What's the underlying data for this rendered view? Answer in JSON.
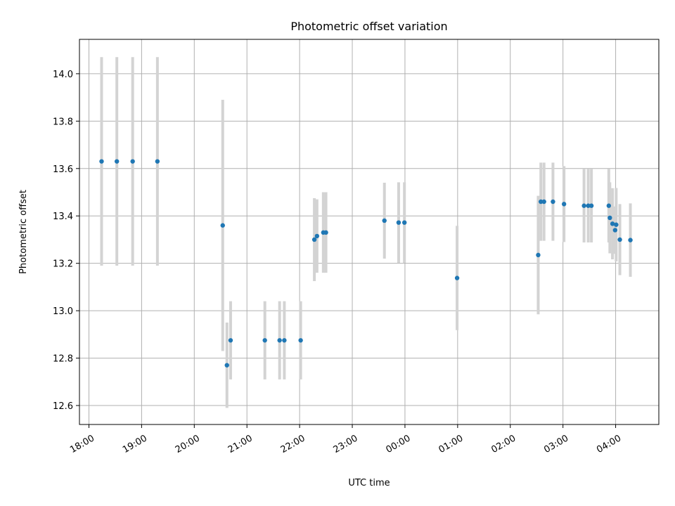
{
  "chart_data": {
    "type": "scatter",
    "title": "Photometric offset variation",
    "xlabel": "UTC time",
    "ylabel": "Photometric offset",
    "x_unit": "hours since 18:00 UTC",
    "xlim": [
      -0.18,
      10.82
    ],
    "ylim": [
      12.52,
      14.145
    ],
    "grid": true,
    "xticks": [
      {
        "value": 0,
        "label": "18:00"
      },
      {
        "value": 1,
        "label": "19:00"
      },
      {
        "value": 2,
        "label": "20:00"
      },
      {
        "value": 3,
        "label": "21:00"
      },
      {
        "value": 4,
        "label": "22:00"
      },
      {
        "value": 5,
        "label": "23:00"
      },
      {
        "value": 6,
        "label": "00:00"
      },
      {
        "value": 7,
        "label": "01:00"
      },
      {
        "value": 8,
        "label": "02:00"
      },
      {
        "value": 9,
        "label": "03:00"
      },
      {
        "value": 10,
        "label": "04:00"
      }
    ],
    "yticks": [
      {
        "value": 12.6,
        "label": "12.6"
      },
      {
        "value": 12.8,
        "label": "12.8"
      },
      {
        "value": 13.0,
        "label": "13.0"
      },
      {
        "value": 13.2,
        "label": "13.2"
      },
      {
        "value": 13.4,
        "label": "13.4"
      },
      {
        "value": 13.6,
        "label": "13.6"
      },
      {
        "value": 13.8,
        "label": "13.8"
      },
      {
        "value": 14.0,
        "label": "14.0"
      }
    ],
    "point_color": "#1f77b4",
    "errorbar_color": "#d3d3d3",
    "points": [
      {
        "x": 0.24,
        "y": 13.63,
        "err": 0.44
      },
      {
        "x": 0.53,
        "y": 13.63,
        "err": 0.44
      },
      {
        "x": 0.83,
        "y": 13.63,
        "err": 0.44
      },
      {
        "x": 1.3,
        "y": 13.63,
        "err": 0.44
      },
      {
        "x": 2.54,
        "y": 13.36,
        "err": 0.53
      },
      {
        "x": 2.62,
        "y": 12.77,
        "err": 0.18
      },
      {
        "x": 2.69,
        "y": 12.875,
        "err": 0.165
      },
      {
        "x": 3.34,
        "y": 12.875,
        "err": 0.165
      },
      {
        "x": 3.62,
        "y": 12.875,
        "err": 0.165
      },
      {
        "x": 3.71,
        "y": 12.875,
        "err": 0.165
      },
      {
        "x": 4.02,
        "y": 12.875,
        "err": 0.165
      },
      {
        "x": 4.28,
        "y": 13.3,
        "err": 0.175
      },
      {
        "x": 4.33,
        "y": 13.315,
        "err": 0.155
      },
      {
        "x": 4.45,
        "y": 13.33,
        "err": 0.17
      },
      {
        "x": 4.5,
        "y": 13.33,
        "err": 0.17
      },
      {
        "x": 5.61,
        "y": 13.38,
        "err": 0.16
      },
      {
        "x": 5.88,
        "y": 13.372,
        "err": 0.17
      },
      {
        "x": 5.99,
        "y": 13.372,
        "err": 0.17
      },
      {
        "x": 6.99,
        "y": 13.138,
        "err": 0.22
      },
      {
        "x": 8.53,
        "y": 13.235,
        "err": 0.25
      },
      {
        "x": 8.58,
        "y": 13.46,
        "err": 0.165
      },
      {
        "x": 8.64,
        "y": 13.46,
        "err": 0.165
      },
      {
        "x": 8.81,
        "y": 13.46,
        "err": 0.165
      },
      {
        "x": 9.02,
        "y": 13.45,
        "err": 0.16
      },
      {
        "x": 9.4,
        "y": 13.443,
        "err": 0.155
      },
      {
        "x": 9.48,
        "y": 13.443,
        "err": 0.155
      },
      {
        "x": 9.54,
        "y": 13.443,
        "err": 0.155
      },
      {
        "x": 9.87,
        "y": 13.443,
        "err": 0.155
      },
      {
        "x": 9.89,
        "y": 13.392,
        "err": 0.15
      },
      {
        "x": 9.94,
        "y": 13.367,
        "err": 0.15
      },
      {
        "x": 10.01,
        "y": 13.363,
        "err": 0.155
      },
      {
        "x": 9.99,
        "y": 13.34,
        "err": 0.1
      },
      {
        "x": 10.08,
        "y": 13.3,
        "err": 0.15
      },
      {
        "x": 10.28,
        "y": 13.298,
        "err": 0.155
      }
    ]
  }
}
